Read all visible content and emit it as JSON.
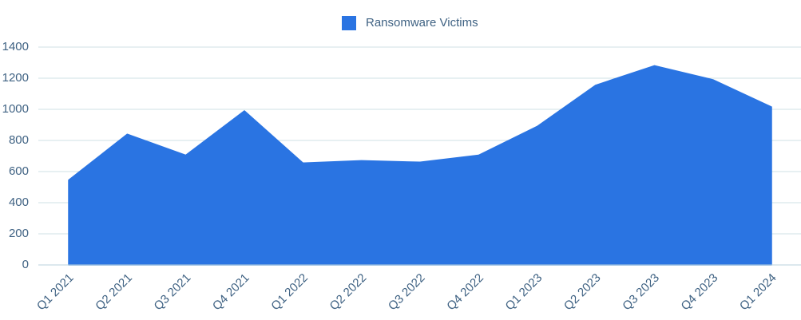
{
  "chart_data": {
    "type": "area",
    "categories": [
      "Q1 2021",
      "Q2 2021",
      "Q3 2021",
      "Q4 2021",
      "Q1 2022",
      "Q2 2022",
      "Q3 2022",
      "Q4 2022",
      "Q1 2023",
      "Q2 2023",
      "Q3 2023",
      "Q4 2023",
      "Q1 2024"
    ],
    "series": [
      {
        "name": "Ransomware Victims",
        "color": "#2a74e2",
        "values": [
          545,
          840,
          705,
          990,
          655,
          670,
          660,
          705,
          890,
          1155,
          1280,
          1190,
          1015
        ]
      }
    ],
    "ylim": [
      0,
      1400
    ],
    "yticks": [
      0,
      200,
      400,
      600,
      800,
      1000,
      1200,
      1400
    ],
    "grid": true,
    "legend": "top"
  }
}
